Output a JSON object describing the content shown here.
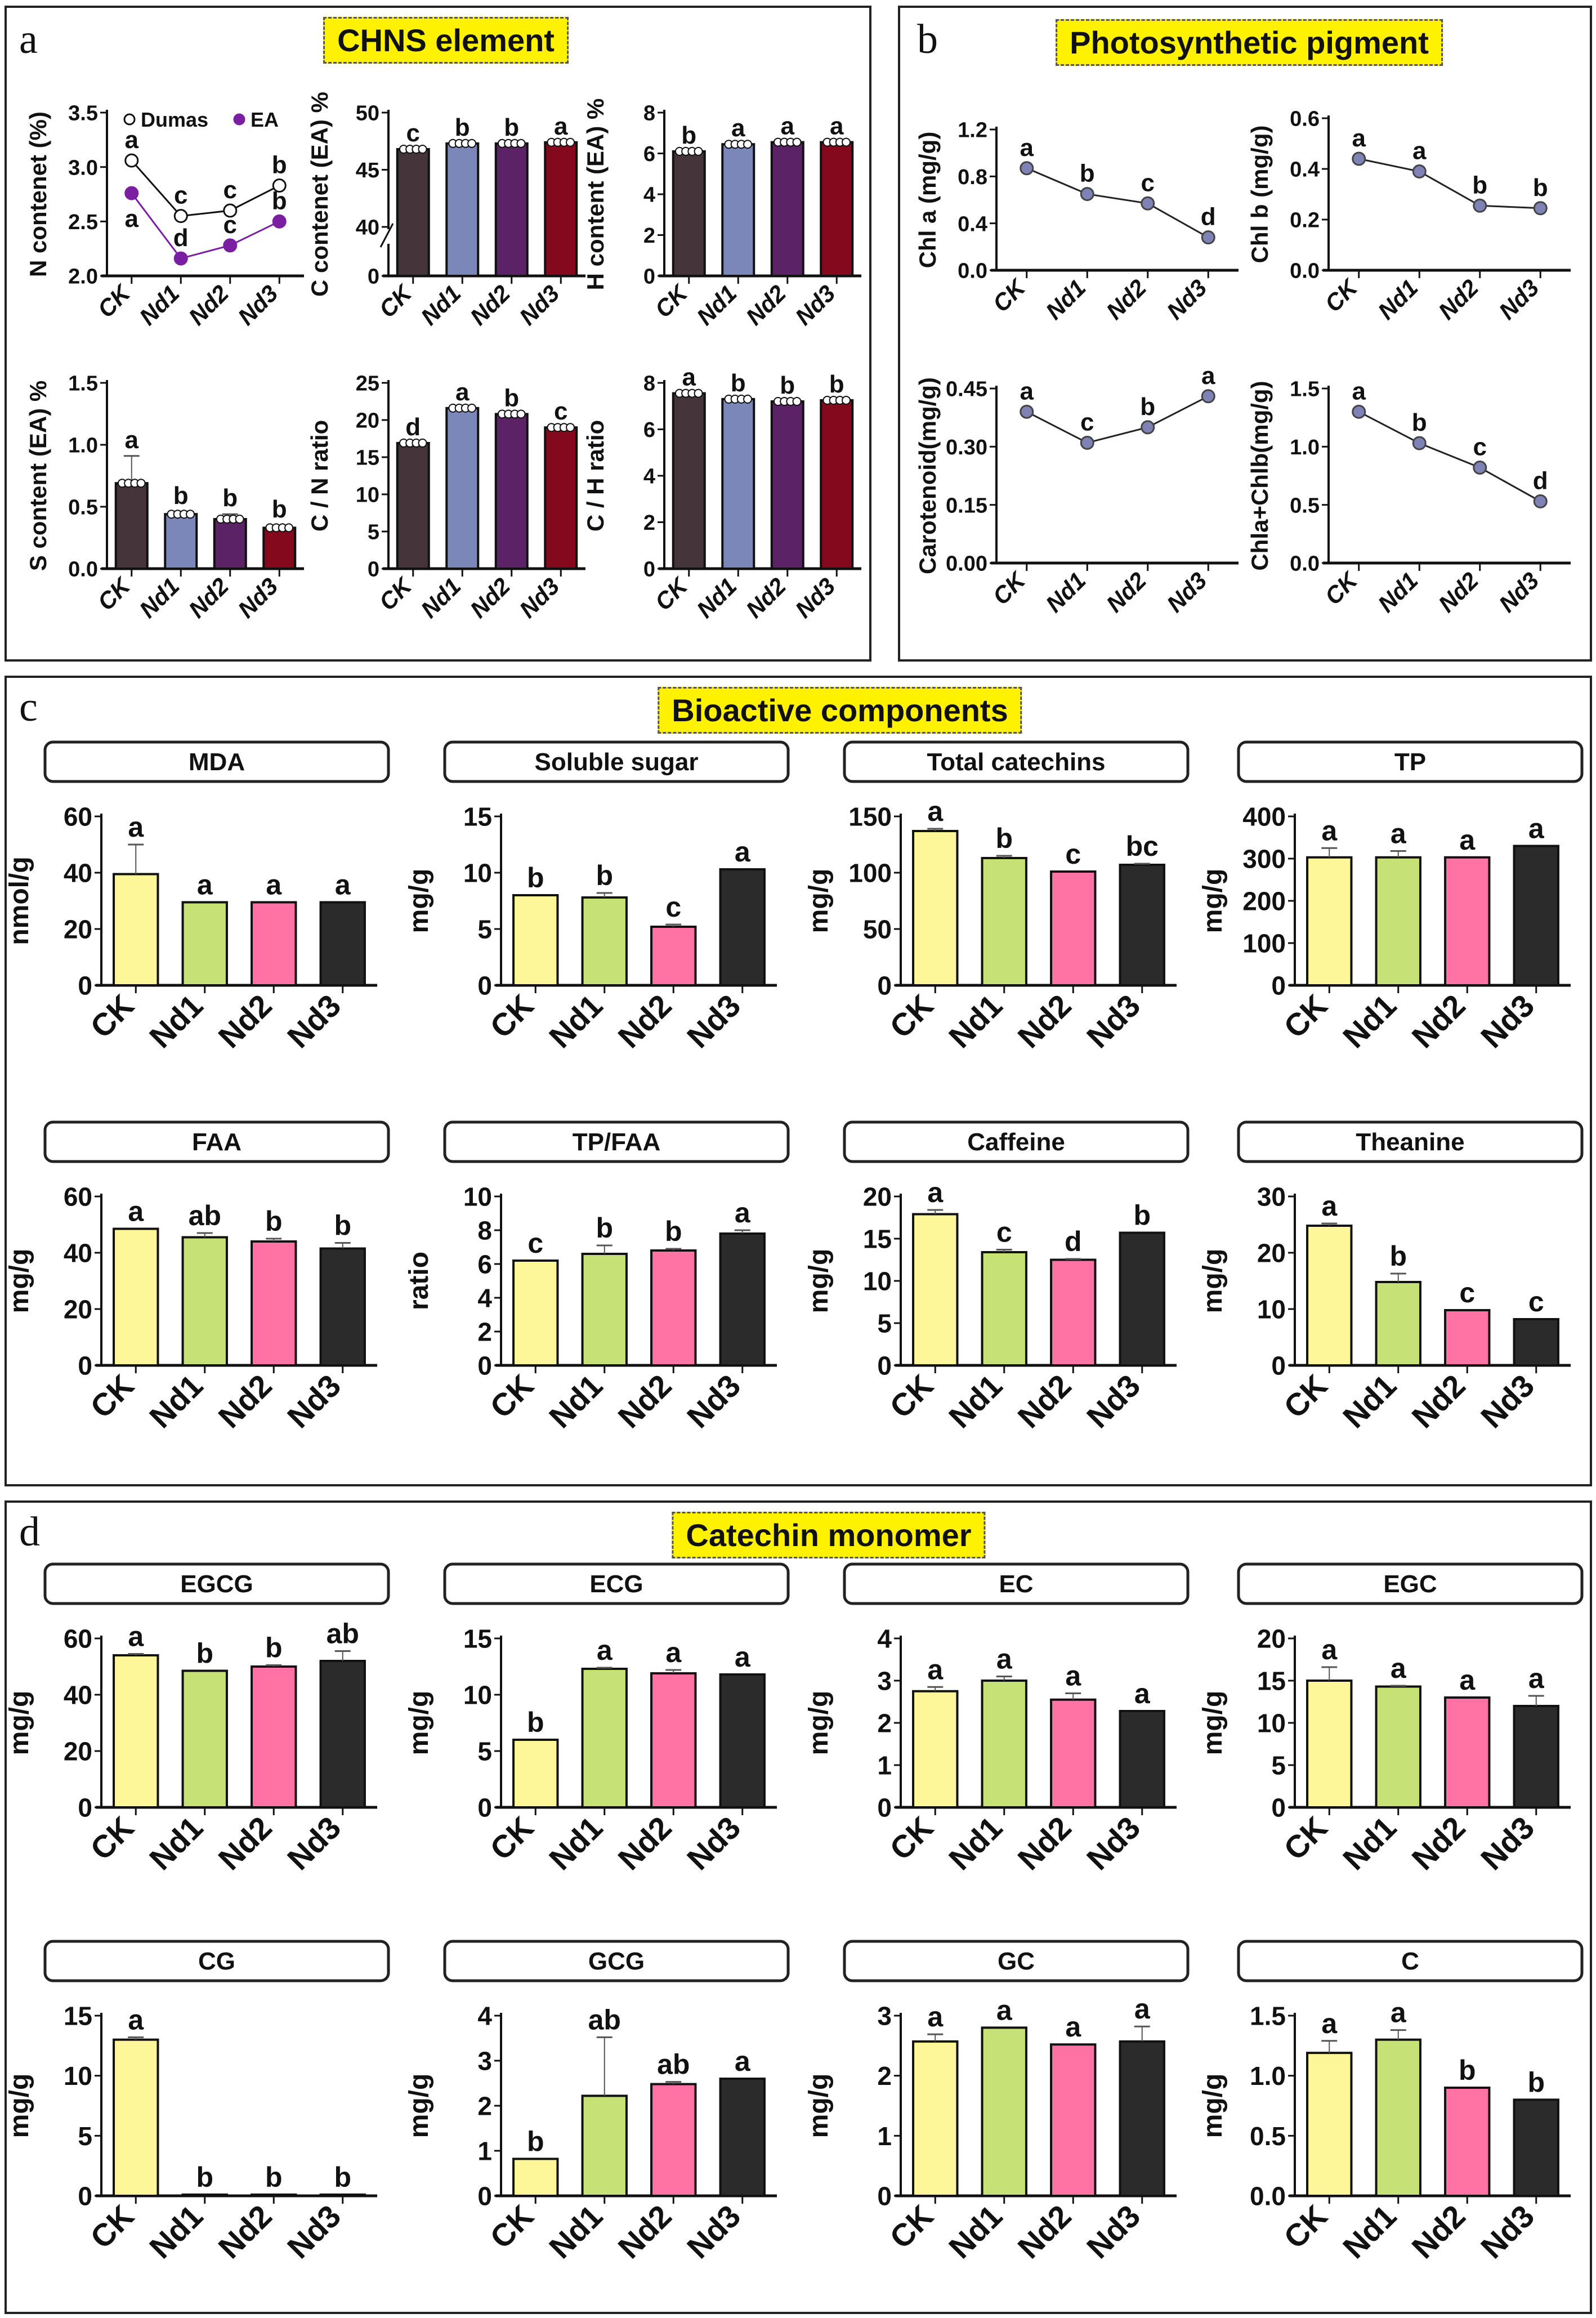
{
  "groups": [
    "CK",
    "Nd1",
    "Nd2",
    "Nd3"
  ],
  "colors": {
    "panel_a_bars": [
      "#453439",
      "#7b87b8",
      "#5b2266",
      "#84091d"
    ],
    "panel_cd_bars": [
      "#fdf79a",
      "#c6e276",
      "#ff72a4",
      "#2b2b2b"
    ],
    "dumas_line": "#111111",
    "ea_line": "#7a1fa2",
    "pigment_point": "#7f82b4",
    "title_bg": "#fff200"
  },
  "panels": {
    "a": {
      "letter": "a",
      "title": "CHNS element"
    },
    "b": {
      "letter": "b",
      "title": "Photosynthetic pigment"
    },
    "c": {
      "letter": "c",
      "title": "Bioactive components"
    },
    "d": {
      "letter": "d",
      "title": "Catechin monomer"
    }
  },
  "chart_data": [
    {
      "id": "n_content",
      "panel": "a",
      "type": "line",
      "ylabel": "N contenet (%)",
      "ylim": [
        2.0,
        3.5
      ],
      "yticks": [
        "2.0",
        "2.5",
        "3.0",
        "3.5"
      ],
      "categories": [
        "CK",
        "Nd1",
        "Nd2",
        "Nd3"
      ],
      "legend": [
        "Dumas",
        "EA"
      ],
      "legend_position": "top",
      "series": [
        {
          "name": "Dumas",
          "values": [
            3.06,
            2.55,
            2.6,
            2.83
          ],
          "letters": [
            "a",
            "c",
            "c",
            "b"
          ]
        },
        {
          "name": "EA",
          "values": [
            2.76,
            2.16,
            2.28,
            2.5
          ],
          "letters": [
            "a",
            "d",
            "c",
            "b"
          ]
        }
      ]
    },
    {
      "id": "c_content",
      "panel": "a",
      "type": "bar",
      "ylabel": "C contenet (EA) %",
      "ylim": [
        0,
        50
      ],
      "yticks": [
        "0",
        "40",
        "45",
        "50"
      ],
      "axis_break": [
        0,
        40
      ],
      "categories": [
        "CK",
        "Nd1",
        "Nd2",
        "Nd3"
      ],
      "values": [
        46.8,
        47.3,
        47.3,
        47.4
      ],
      "letters": [
        "c",
        "b",
        "b",
        "a"
      ]
    },
    {
      "id": "h_content",
      "panel": "a",
      "type": "bar",
      "ylabel": "H content (EA) %",
      "ylim": [
        0,
        8
      ],
      "yticks": [
        "0",
        "2",
        "4",
        "6",
        "8"
      ],
      "categories": [
        "CK",
        "Nd1",
        "Nd2",
        "Nd3"
      ],
      "values": [
        6.1,
        6.45,
        6.55,
        6.55
      ],
      "letters": [
        "b",
        "a",
        "a",
        "a"
      ]
    },
    {
      "id": "s_content",
      "panel": "a",
      "type": "bar",
      "ylabel": "S content (EA) %",
      "ylim": [
        0,
        1.5
      ],
      "yticks": [
        "0.0",
        "0.5",
        "1.0",
        "1.5"
      ],
      "categories": [
        "CK",
        "Nd1",
        "Nd2",
        "Nd3"
      ],
      "values": [
        0.69,
        0.44,
        0.4,
        0.33
      ],
      "errors": [
        0.22,
        0.02,
        0.04,
        0.02
      ],
      "letters": [
        "a",
        "b",
        "b",
        "b"
      ]
    },
    {
      "id": "cn_ratio",
      "panel": "a",
      "type": "bar",
      "ylabel": "C / N ratio",
      "ylim": [
        0,
        25
      ],
      "yticks": [
        "0",
        "5",
        "10",
        "15",
        "20",
        "25"
      ],
      "categories": [
        "CK",
        "Nd1",
        "Nd2",
        "Nd3"
      ],
      "values": [
        16.9,
        21.6,
        20.8,
        19.0
      ],
      "letters": [
        "d",
        "a",
        "b",
        "c"
      ]
    },
    {
      "id": "ch_ratio",
      "panel": "a",
      "type": "bar",
      "ylabel": "C / H ratio",
      "ylim": [
        0,
        8
      ],
      "yticks": [
        "0",
        "2",
        "4",
        "6",
        "8"
      ],
      "categories": [
        "CK",
        "Nd1",
        "Nd2",
        "Nd3"
      ],
      "values": [
        7.55,
        7.3,
        7.2,
        7.25
      ],
      "letters": [
        "a",
        "b",
        "b",
        "b"
      ]
    },
    {
      "id": "chl_a",
      "panel": "b",
      "type": "line",
      "ylabel": "Chl a (mg/g)",
      "ylim": [
        0,
        1.2
      ],
      "yticks": [
        "0.0",
        "0.4",
        "0.8",
        "1.2"
      ],
      "categories": [
        "CK",
        "Nd1",
        "Nd2",
        "Nd3"
      ],
      "series": [
        {
          "name": "Chl a",
          "values": [
            0.87,
            0.65,
            0.57,
            0.28
          ],
          "letters": [
            "a",
            "b",
            "c",
            "d"
          ]
        }
      ]
    },
    {
      "id": "chl_b",
      "panel": "b",
      "type": "line",
      "ylabel": "Chl b (mg/g)",
      "ylim": [
        0,
        0.6
      ],
      "yticks": [
        "0.0",
        "0.2",
        "0.4",
        "0.6"
      ],
      "categories": [
        "CK",
        "Nd1",
        "Nd2",
        "Nd3"
      ],
      "series": [
        {
          "name": "Chl b",
          "values": [
            0.44,
            0.39,
            0.255,
            0.245
          ],
          "letters": [
            "a",
            "a",
            "b",
            "b"
          ]
        }
      ]
    },
    {
      "id": "carotenoid",
      "panel": "b",
      "type": "line",
      "ylabel": "Carotenoid(mg/g)",
      "ylim": [
        0,
        0.45
      ],
      "yticks": [
        "0.00",
        "0.15",
        "0.30",
        "0.45"
      ],
      "categories": [
        "CK",
        "Nd1",
        "Nd2",
        "Nd3"
      ],
      "series": [
        {
          "name": "Carotenoid",
          "values": [
            0.39,
            0.31,
            0.35,
            0.43
          ],
          "letters": [
            "a",
            "c",
            "b",
            "a"
          ]
        }
      ]
    },
    {
      "id": "chla_chlb",
      "panel": "b",
      "type": "line",
      "ylabel": "Chla+Chlb(mg/g)",
      "ylim": [
        0,
        1.5
      ],
      "yticks": [
        "0.0",
        "0.5",
        "1.0",
        "1.5"
      ],
      "categories": [
        "CK",
        "Nd1",
        "Nd2",
        "Nd3"
      ],
      "series": [
        {
          "name": "Chla+Chlb",
          "values": [
            1.3,
            1.03,
            0.82,
            0.53
          ],
          "letters": [
            "a",
            "b",
            "c",
            "d"
          ]
        }
      ]
    },
    {
      "id": "mda",
      "panel": "c",
      "type": "bar",
      "title": "MDA",
      "ylabel": "nmol/g",
      "ylim": [
        0,
        60
      ],
      "yticks": [
        "0",
        "20",
        "40",
        "60"
      ],
      "categories": [
        "CK",
        "Nd1",
        "Nd2",
        "Nd3"
      ],
      "values": [
        39.5,
        29.5,
        29.5,
        29.5
      ],
      "errors": [
        10.5,
        0,
        0,
        0
      ],
      "letters": [
        "a",
        "a",
        "a",
        "a"
      ]
    },
    {
      "id": "soluble_sugar",
      "panel": "c",
      "type": "bar",
      "title": "Soluble sugar",
      "ylabel": "mg/g",
      "ylim": [
        0,
        15
      ],
      "yticks": [
        "0",
        "5",
        "10",
        "15"
      ],
      "categories": [
        "CK",
        "Nd1",
        "Nd2",
        "Nd3"
      ],
      "values": [
        8.0,
        7.8,
        5.2,
        10.3
      ],
      "errors": [
        0,
        0.4,
        0.2,
        0
      ],
      "letters": [
        "b",
        "b",
        "c",
        "a"
      ]
    },
    {
      "id": "total_catechins",
      "panel": "c",
      "type": "bar",
      "title": "Total catechins",
      "ylabel": "mg/g",
      "ylim": [
        0,
        150
      ],
      "yticks": [
        "0",
        "50",
        "100",
        "150"
      ],
      "categories": [
        "CK",
        "Nd1",
        "Nd2",
        "Nd3"
      ],
      "values": [
        137,
        113,
        101,
        107
      ],
      "errors": [
        2,
        2,
        0,
        1
      ],
      "letters": [
        "a",
        "b",
        "c",
        "bc"
      ]
    },
    {
      "id": "tp",
      "panel": "c",
      "type": "bar",
      "title": "TP",
      "ylabel": "mg/g",
      "ylim": [
        0,
        400
      ],
      "yticks": [
        "0",
        "100",
        "200",
        "300",
        "400"
      ],
      "categories": [
        "CK",
        "Nd1",
        "Nd2",
        "Nd3"
      ],
      "values": [
        303,
        303,
        303,
        330
      ],
      "errors": [
        22,
        15,
        0,
        0
      ],
      "letters": [
        "a",
        "a",
        "a",
        "a"
      ]
    },
    {
      "id": "faa",
      "panel": "c",
      "type": "bar",
      "title": "FAA",
      "ylabel": "mg/g",
      "ylim": [
        0,
        60
      ],
      "yticks": [
        "0",
        "20",
        "40",
        "60"
      ],
      "categories": [
        "CK",
        "Nd1",
        "Nd2",
        "Nd3"
      ],
      "values": [
        48.5,
        45.5,
        44,
        41.5
      ],
      "errors": [
        0,
        1.5,
        1,
        2
      ],
      "letters": [
        "a",
        "ab",
        "b",
        "b"
      ]
    },
    {
      "id": "tp_faa",
      "panel": "c",
      "type": "bar",
      "title": "TP/FAA",
      "ylabel": "ratio",
      "ylim": [
        0,
        10
      ],
      "yticks": [
        "0",
        "2",
        "4",
        "6",
        "8",
        "10"
      ],
      "categories": [
        "CK",
        "Nd1",
        "Nd2",
        "Nd3"
      ],
      "values": [
        6.2,
        6.6,
        6.8,
        7.8
      ],
      "errors": [
        0,
        0.5,
        0.1,
        0.2
      ],
      "letters": [
        "c",
        "b",
        "b",
        "a"
      ]
    },
    {
      "id": "caffeine",
      "panel": "c",
      "type": "bar",
      "title": "Caffeine",
      "ylabel": "mg/g",
      "ylim": [
        0,
        20
      ],
      "yticks": [
        "0",
        "5",
        "10",
        "15",
        "20"
      ],
      "categories": [
        "CK",
        "Nd1",
        "Nd2",
        "Nd3"
      ],
      "values": [
        17.9,
        13.4,
        12.5,
        15.7
      ],
      "errors": [
        0.5,
        0.3,
        0.1,
        0
      ],
      "letters": [
        "a",
        "c",
        "d",
        "b"
      ]
    },
    {
      "id": "theanine",
      "panel": "c",
      "type": "bar",
      "title": "Theanine",
      "ylabel": "mg/g",
      "ylim": [
        0,
        30
      ],
      "yticks": [
        "0",
        "10",
        "20",
        "30"
      ],
      "categories": [
        "CK",
        "Nd1",
        "Nd2",
        "Nd3"
      ],
      "values": [
        24.8,
        14.8,
        9.8,
        8.2
      ],
      "errors": [
        0.4,
        1.5,
        0,
        0
      ],
      "letters": [
        "a",
        "b",
        "c",
        "c"
      ]
    },
    {
      "id": "egcg",
      "panel": "d",
      "type": "bar",
      "title": "EGCG",
      "ylabel": "mg/g",
      "ylim": [
        0,
        60
      ],
      "yticks": [
        "0",
        "20",
        "40",
        "60"
      ],
      "categories": [
        "CK",
        "Nd1",
        "Nd2",
        "Nd3"
      ],
      "values": [
        54,
        48.5,
        50,
        52
      ],
      "errors": [
        0.5,
        0,
        0.5,
        3.5
      ],
      "letters": [
        "a",
        "b",
        "b",
        "ab"
      ]
    },
    {
      "id": "ecg",
      "panel": "d",
      "type": "bar",
      "title": "ECG",
      "ylabel": "mg/g",
      "ylim": [
        0,
        15
      ],
      "yticks": [
        "0",
        "5",
        "10",
        "15"
      ],
      "categories": [
        "CK",
        "Nd1",
        "Nd2",
        "Nd3"
      ],
      "values": [
        6.0,
        12.3,
        11.9,
        11.8
      ],
      "errors": [
        0,
        0.1,
        0.3,
        0
      ],
      "letters": [
        "b",
        "a",
        "a",
        "a"
      ]
    },
    {
      "id": "ec",
      "panel": "d",
      "type": "bar",
      "title": "EC",
      "ylabel": "mg/g",
      "ylim": [
        0,
        4
      ],
      "yticks": [
        "0",
        "1",
        "2",
        "3",
        "4"
      ],
      "categories": [
        "CK",
        "Nd1",
        "Nd2",
        "Nd3"
      ],
      "values": [
        2.75,
        3.0,
        2.55,
        2.28
      ],
      "errors": [
        0.1,
        0.1,
        0.15,
        0
      ],
      "letters": [
        "a",
        "a",
        "a",
        "a"
      ]
    },
    {
      "id": "egc",
      "panel": "d",
      "type": "bar",
      "title": "EGC",
      "ylabel": "mg/g",
      "ylim": [
        0,
        20
      ],
      "yticks": [
        "0",
        "5",
        "10",
        "15",
        "20"
      ],
      "categories": [
        "CK",
        "Nd1",
        "Nd2",
        "Nd3"
      ],
      "values": [
        15.0,
        14.3,
        13.0,
        12.0
      ],
      "errors": [
        1.6,
        0.1,
        0,
        1.2
      ],
      "letters": [
        "a",
        "a",
        "a",
        "a"
      ]
    },
    {
      "id": "cg",
      "panel": "d",
      "type": "bar",
      "title": "CG",
      "ylabel": "mg/g",
      "ylim": [
        0,
        15
      ],
      "yticks": [
        "0",
        "5",
        "10",
        "15"
      ],
      "categories": [
        "CK",
        "Nd1",
        "Nd2",
        "Nd3"
      ],
      "values": [
        13.0,
        0.1,
        0.1,
        0.1
      ],
      "errors": [
        0.2,
        0,
        0,
        0
      ],
      "letters": [
        "a",
        "b",
        "b",
        "b"
      ]
    },
    {
      "id": "gcg",
      "panel": "d",
      "type": "bar",
      "title": "GCG",
      "ylabel": "mg/g",
      "ylim": [
        0,
        4
      ],
      "yticks": [
        "0",
        "1",
        "2",
        "3",
        "4"
      ],
      "categories": [
        "CK",
        "Nd1",
        "Nd2",
        "Nd3"
      ],
      "values": [
        0.82,
        2.22,
        2.48,
        2.6
      ],
      "errors": [
        0,
        1.3,
        0.05,
        0
      ],
      "letters": [
        "b",
        "ab",
        "ab",
        "a"
      ]
    },
    {
      "id": "gc",
      "panel": "d",
      "type": "bar",
      "title": "GC",
      "ylabel": "mg/g",
      "ylim": [
        0,
        3
      ],
      "yticks": [
        "0",
        "1",
        "2",
        "3"
      ],
      "categories": [
        "CK",
        "Nd1",
        "Nd2",
        "Nd3"
      ],
      "values": [
        2.57,
        2.8,
        2.52,
        2.57
      ],
      "errors": [
        0.12,
        0,
        0,
        0.25
      ],
      "letters": [
        "a",
        "a",
        "a",
        "a"
      ]
    },
    {
      "id": "c",
      "panel": "d",
      "type": "bar",
      "title": "C",
      "ylabel": "mg/g",
      "ylim": [
        0,
        1.5
      ],
      "yticks": [
        "0.0",
        "0.5",
        "1.0",
        "1.5"
      ],
      "categories": [
        "CK",
        "Nd1",
        "Nd2",
        "Nd3"
      ],
      "values": [
        1.19,
        1.3,
        0.9,
        0.8
      ],
      "errors": [
        0.1,
        0.08,
        0,
        0
      ],
      "letters": [
        "a",
        "a",
        "b",
        "b"
      ]
    }
  ]
}
